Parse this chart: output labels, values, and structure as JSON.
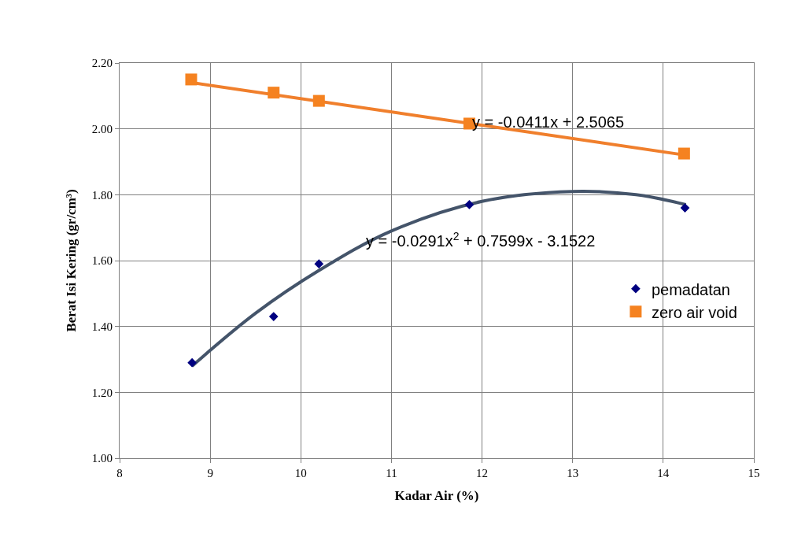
{
  "chart_data": {
    "type": "scatter",
    "xlabel": "Kadar Air (%)",
    "ylabel": "Berat Isi Kering (gr/cm³)",
    "xlim": [
      8,
      15
    ],
    "xticks": [
      8,
      9,
      10,
      11,
      12,
      13,
      14,
      15
    ],
    "ylim": [
      1.0,
      2.2
    ],
    "yticks": [
      {
        "value": 1.0,
        "label": "1.00"
      },
      {
        "value": 1.2,
        "label": "1.20"
      },
      {
        "value": 1.4,
        "label": "1.40"
      },
      {
        "value": 1.6,
        "label": "1.60"
      },
      {
        "value": 1.8,
        "label": "1.80"
      },
      {
        "value": 2.0,
        "label": "2.00"
      },
      {
        "value": 2.2,
        "label": "2.20"
      }
    ],
    "grid": true,
    "legend": "right",
    "series": [
      {
        "type": "line",
        "color": "#44546a",
        "marker": "none",
        "x": [
          8.8,
          9.5,
          10.2,
          11,
          12,
          13,
          13.7,
          14.25
        ],
        "values": [
          1.28,
          1.44,
          1.57,
          1.69,
          1.78,
          1.81,
          1.8,
          1.77
        ]
      },
      {
        "type": "line",
        "color": "#f07f2c",
        "marker": "none",
        "x": [
          8.8,
          14.25
        ],
        "values": [
          2.14,
          1.92
        ]
      },
      {
        "name": "pemadatan",
        "color": "#000080",
        "marker": "diamond",
        "x": [
          8.8,
          9.7,
          10.2,
          11.86,
          14.24
        ],
        "values": [
          1.29,
          1.43,
          1.59,
          1.77,
          1.76
        ]
      },
      {
        "name": "zero air void",
        "color": "#f58220",
        "marker": "square",
        "x": [
          8.79,
          9.7,
          10.2,
          11.86,
          14.23
        ],
        "values": [
          2.15,
          2.11,
          2.085,
          2.016,
          1.925
        ]
      }
    ],
    "annotations": [
      "y = -0.0411x + 2.5065",
      "y = -0.0291x$^{2}$ + 0.7599x - 3.1522"
    ]
  }
}
